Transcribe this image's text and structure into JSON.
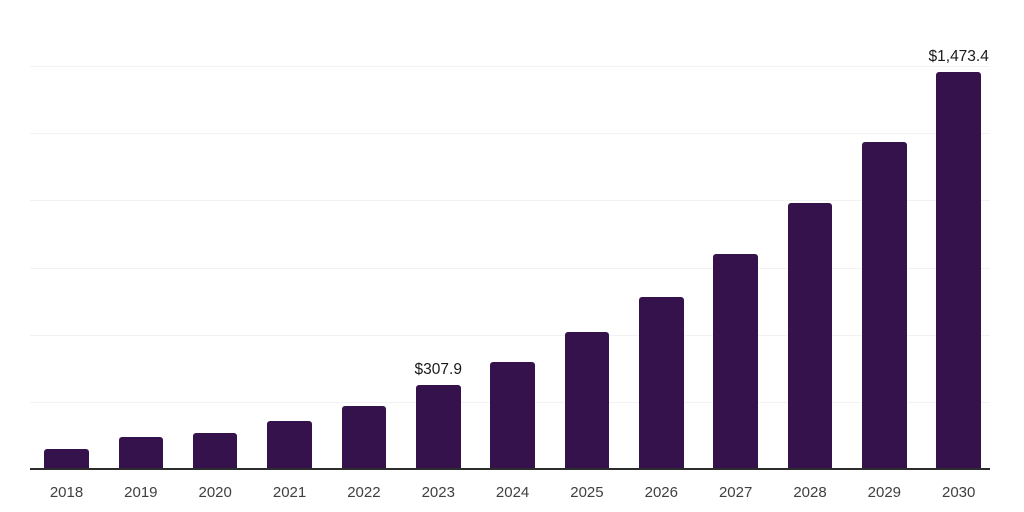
{
  "chart_data": {
    "type": "bar",
    "categories": [
      "2018",
      "2019",
      "2020",
      "2021",
      "2022",
      "2023",
      "2024",
      "2025",
      "2026",
      "2027",
      "2028",
      "2029",
      "2030"
    ],
    "values": [
      72.1,
      114.6,
      131.9,
      175.3,
      232.6,
      307.9,
      395.6,
      507.2,
      638.1,
      798.4,
      985.1,
      1213.6,
      1473.4
    ],
    "data_labels": [
      {
        "category": "2023",
        "text": "$307.9"
      },
      {
        "category": "2030",
        "text": "$1,473.4"
      }
    ],
    "xlabel": "",
    "ylabel": "",
    "ylim": [
      0,
      1750
    ],
    "grid_interval": 250,
    "grid": true,
    "legend": false,
    "colors": {
      "bar": "#36124D",
      "axis_line": "#2d2d2d",
      "gridline": "#f2f2f2",
      "tick_label": "#404040",
      "data_label": "#1a1a1a",
      "background": "#ffffff"
    }
  }
}
